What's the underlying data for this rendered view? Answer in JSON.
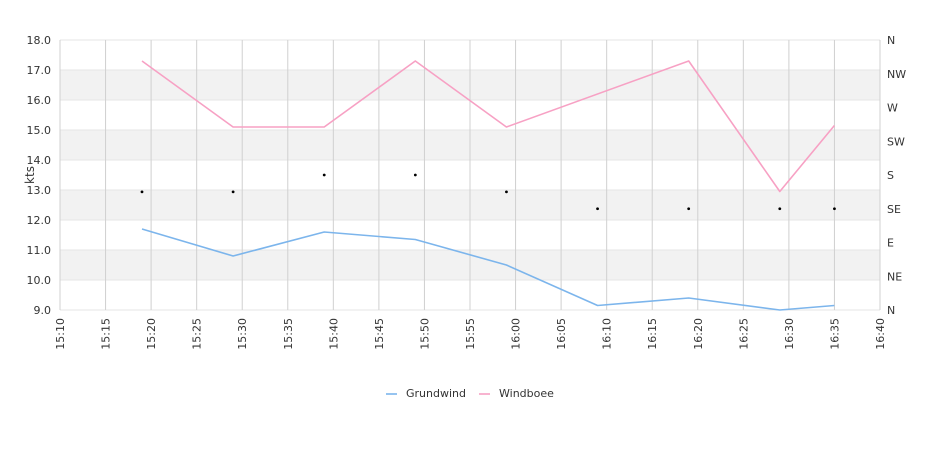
{
  "chart_data": {
    "type": "line",
    "ylabel": "kts",
    "ylim": [
      9.0,
      18.0
    ],
    "y_ticks": [
      "9.0",
      "10.0",
      "11.0",
      "12.0",
      "13.0",
      "14.0",
      "15.0",
      "16.0",
      "17.0",
      "18.0"
    ],
    "x_ticks": [
      "15:10",
      "15:15",
      "15:20",
      "15:25",
      "15:30",
      "15:35",
      "15:40",
      "15:45",
      "15:50",
      "15:55",
      "16:00",
      "16:05",
      "16:10",
      "16:15",
      "16:20",
      "16:25",
      "16:30",
      "16:35",
      "16:40"
    ],
    "xlim": [
      "15:10",
      "16:40"
    ],
    "y2_ticks": [
      "N",
      "NE",
      "E",
      "SE",
      "S",
      "SW",
      "W",
      "NW",
      "N"
    ],
    "grid": true,
    "legend_position": "bottom",
    "series": [
      {
        "name": "Grundwind",
        "color": "#7cb5ec",
        "x": [
          "15:19",
          "15:29",
          "15:39",
          "15:49",
          "15:59",
          "16:09",
          "16:19",
          "16:29",
          "16:35"
        ],
        "values": [
          11.7,
          10.8,
          11.6,
          11.35,
          10.5,
          9.15,
          9.4,
          9.0,
          9.15
        ]
      },
      {
        "name": "Windboee",
        "color": "#f7a1c4",
        "x": [
          "15:19",
          "15:29",
          "15:39",
          "15:49",
          "15:59",
          "16:19",
          "16:29",
          "16:35"
        ],
        "values": [
          17.3,
          15.1,
          15.1,
          17.3,
          15.1,
          17.3,
          12.95,
          15.15
        ]
      }
    ],
    "direction_points": {
      "color": "#000000",
      "x": [
        "15:19",
        "15:29",
        "15:39",
        "15:49",
        "15:59",
        "16:09",
        "16:19",
        "16:29",
        "16:35"
      ],
      "values": [
        "SSE",
        "SSE",
        "S",
        "S",
        "SSE",
        "SE",
        "SE",
        "SE",
        "SE"
      ]
    }
  }
}
